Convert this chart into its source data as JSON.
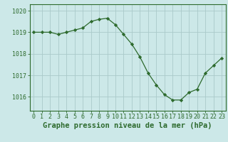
{
  "x": [
    0,
    1,
    2,
    3,
    4,
    5,
    6,
    7,
    8,
    9,
    10,
    11,
    12,
    13,
    14,
    15,
    16,
    17,
    18,
    19,
    20,
    21,
    22,
    23
  ],
  "y": [
    1019.0,
    1019.0,
    1019.0,
    1018.9,
    1019.0,
    1019.1,
    1019.2,
    1019.5,
    1019.6,
    1019.65,
    1019.35,
    1018.9,
    1018.45,
    1017.85,
    1017.1,
    1016.55,
    1016.1,
    1015.85,
    1015.85,
    1016.2,
    1016.35,
    1017.1,
    1017.45,
    1017.8
  ],
  "line_color": "#2d6a2d",
  "marker": "D",
  "marker_size": 2.2,
  "bg_color": "#cce8e8",
  "grid_color": "#aacaca",
  "xlabel": "Graphe pression niveau de la mer (hPa)",
  "xlabel_fontsize": 7.5,
  "xtick_labels": [
    "0",
    "1",
    "2",
    "3",
    "4",
    "5",
    "6",
    "7",
    "8",
    "9",
    "10",
    "11",
    "12",
    "13",
    "14",
    "15",
    "16",
    "17",
    "18",
    "19",
    "20",
    "21",
    "22",
    "23"
  ],
  "ytick_values": [
    1016,
    1017,
    1018,
    1019,
    1020
  ],
  "ylim": [
    1015.35,
    1020.3
  ],
  "xlim": [
    -0.5,
    23.5
  ],
  "tick_color": "#2d6a2d",
  "spine_color": "#2d6a2d",
  "tick_fontsize": 6.0
}
